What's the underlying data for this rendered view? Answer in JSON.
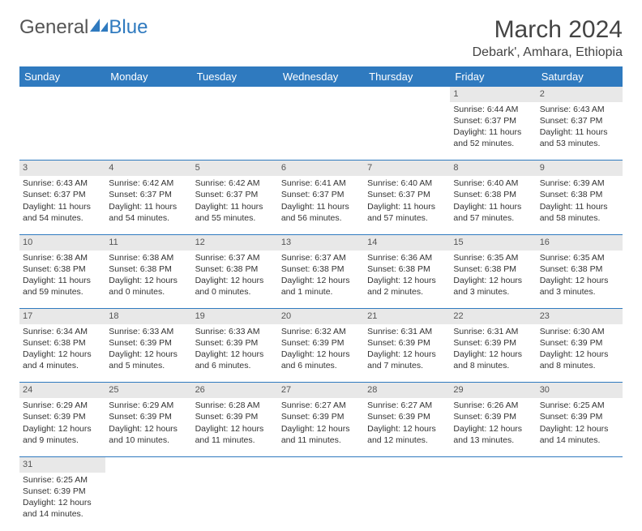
{
  "brand": {
    "part1": "General",
    "part2": "Blue",
    "logo_color": "#2f7abf",
    "text_color": "#555555"
  },
  "title": "March 2024",
  "location": "Debark', Amhara, Ethiopia",
  "colors": {
    "header_bg": "#2f7abf",
    "header_fg": "#ffffff",
    "daynum_bg": "#e8e8e8",
    "border": "#2f7abf"
  },
  "weekdays": [
    "Sunday",
    "Monday",
    "Tuesday",
    "Wednesday",
    "Thursday",
    "Friday",
    "Saturday"
  ],
  "weeks": [
    [
      null,
      null,
      null,
      null,
      null,
      {
        "d": "1",
        "sr": "Sunrise: 6:44 AM",
        "ss": "Sunset: 6:37 PM",
        "dl1": "Daylight: 11 hours",
        "dl2": "and 52 minutes."
      },
      {
        "d": "2",
        "sr": "Sunrise: 6:43 AM",
        "ss": "Sunset: 6:37 PM",
        "dl1": "Daylight: 11 hours",
        "dl2": "and 53 minutes."
      }
    ],
    [
      {
        "d": "3",
        "sr": "Sunrise: 6:43 AM",
        "ss": "Sunset: 6:37 PM",
        "dl1": "Daylight: 11 hours",
        "dl2": "and 54 minutes."
      },
      {
        "d": "4",
        "sr": "Sunrise: 6:42 AM",
        "ss": "Sunset: 6:37 PM",
        "dl1": "Daylight: 11 hours",
        "dl2": "and 54 minutes."
      },
      {
        "d": "5",
        "sr": "Sunrise: 6:42 AM",
        "ss": "Sunset: 6:37 PM",
        "dl1": "Daylight: 11 hours",
        "dl2": "and 55 minutes."
      },
      {
        "d": "6",
        "sr": "Sunrise: 6:41 AM",
        "ss": "Sunset: 6:37 PM",
        "dl1": "Daylight: 11 hours",
        "dl2": "and 56 minutes."
      },
      {
        "d": "7",
        "sr": "Sunrise: 6:40 AM",
        "ss": "Sunset: 6:37 PM",
        "dl1": "Daylight: 11 hours",
        "dl2": "and 57 minutes."
      },
      {
        "d": "8",
        "sr": "Sunrise: 6:40 AM",
        "ss": "Sunset: 6:38 PM",
        "dl1": "Daylight: 11 hours",
        "dl2": "and 57 minutes."
      },
      {
        "d": "9",
        "sr": "Sunrise: 6:39 AM",
        "ss": "Sunset: 6:38 PM",
        "dl1": "Daylight: 11 hours",
        "dl2": "and 58 minutes."
      }
    ],
    [
      {
        "d": "10",
        "sr": "Sunrise: 6:38 AM",
        "ss": "Sunset: 6:38 PM",
        "dl1": "Daylight: 11 hours",
        "dl2": "and 59 minutes."
      },
      {
        "d": "11",
        "sr": "Sunrise: 6:38 AM",
        "ss": "Sunset: 6:38 PM",
        "dl1": "Daylight: 12 hours",
        "dl2": "and 0 minutes."
      },
      {
        "d": "12",
        "sr": "Sunrise: 6:37 AM",
        "ss": "Sunset: 6:38 PM",
        "dl1": "Daylight: 12 hours",
        "dl2": "and 0 minutes."
      },
      {
        "d": "13",
        "sr": "Sunrise: 6:37 AM",
        "ss": "Sunset: 6:38 PM",
        "dl1": "Daylight: 12 hours",
        "dl2": "and 1 minute."
      },
      {
        "d": "14",
        "sr": "Sunrise: 6:36 AM",
        "ss": "Sunset: 6:38 PM",
        "dl1": "Daylight: 12 hours",
        "dl2": "and 2 minutes."
      },
      {
        "d": "15",
        "sr": "Sunrise: 6:35 AM",
        "ss": "Sunset: 6:38 PM",
        "dl1": "Daylight: 12 hours",
        "dl2": "and 3 minutes."
      },
      {
        "d": "16",
        "sr": "Sunrise: 6:35 AM",
        "ss": "Sunset: 6:38 PM",
        "dl1": "Daylight: 12 hours",
        "dl2": "and 3 minutes."
      }
    ],
    [
      {
        "d": "17",
        "sr": "Sunrise: 6:34 AM",
        "ss": "Sunset: 6:38 PM",
        "dl1": "Daylight: 12 hours",
        "dl2": "and 4 minutes."
      },
      {
        "d": "18",
        "sr": "Sunrise: 6:33 AM",
        "ss": "Sunset: 6:39 PM",
        "dl1": "Daylight: 12 hours",
        "dl2": "and 5 minutes."
      },
      {
        "d": "19",
        "sr": "Sunrise: 6:33 AM",
        "ss": "Sunset: 6:39 PM",
        "dl1": "Daylight: 12 hours",
        "dl2": "and 6 minutes."
      },
      {
        "d": "20",
        "sr": "Sunrise: 6:32 AM",
        "ss": "Sunset: 6:39 PM",
        "dl1": "Daylight: 12 hours",
        "dl2": "and 6 minutes."
      },
      {
        "d": "21",
        "sr": "Sunrise: 6:31 AM",
        "ss": "Sunset: 6:39 PM",
        "dl1": "Daylight: 12 hours",
        "dl2": "and 7 minutes."
      },
      {
        "d": "22",
        "sr": "Sunrise: 6:31 AM",
        "ss": "Sunset: 6:39 PM",
        "dl1": "Daylight: 12 hours",
        "dl2": "and 8 minutes."
      },
      {
        "d": "23",
        "sr": "Sunrise: 6:30 AM",
        "ss": "Sunset: 6:39 PM",
        "dl1": "Daylight: 12 hours",
        "dl2": "and 8 minutes."
      }
    ],
    [
      {
        "d": "24",
        "sr": "Sunrise: 6:29 AM",
        "ss": "Sunset: 6:39 PM",
        "dl1": "Daylight: 12 hours",
        "dl2": "and 9 minutes."
      },
      {
        "d": "25",
        "sr": "Sunrise: 6:29 AM",
        "ss": "Sunset: 6:39 PM",
        "dl1": "Daylight: 12 hours",
        "dl2": "and 10 minutes."
      },
      {
        "d": "26",
        "sr": "Sunrise: 6:28 AM",
        "ss": "Sunset: 6:39 PM",
        "dl1": "Daylight: 12 hours",
        "dl2": "and 11 minutes."
      },
      {
        "d": "27",
        "sr": "Sunrise: 6:27 AM",
        "ss": "Sunset: 6:39 PM",
        "dl1": "Daylight: 12 hours",
        "dl2": "and 11 minutes."
      },
      {
        "d": "28",
        "sr": "Sunrise: 6:27 AM",
        "ss": "Sunset: 6:39 PM",
        "dl1": "Daylight: 12 hours",
        "dl2": "and 12 minutes."
      },
      {
        "d": "29",
        "sr": "Sunrise: 6:26 AM",
        "ss": "Sunset: 6:39 PM",
        "dl1": "Daylight: 12 hours",
        "dl2": "and 13 minutes."
      },
      {
        "d": "30",
        "sr": "Sunrise: 6:25 AM",
        "ss": "Sunset: 6:39 PM",
        "dl1": "Daylight: 12 hours",
        "dl2": "and 14 minutes."
      }
    ],
    [
      {
        "d": "31",
        "sr": "Sunrise: 6:25 AM",
        "ss": "Sunset: 6:39 PM",
        "dl1": "Daylight: 12 hours",
        "dl2": "and 14 minutes."
      },
      null,
      null,
      null,
      null,
      null,
      null
    ]
  ]
}
